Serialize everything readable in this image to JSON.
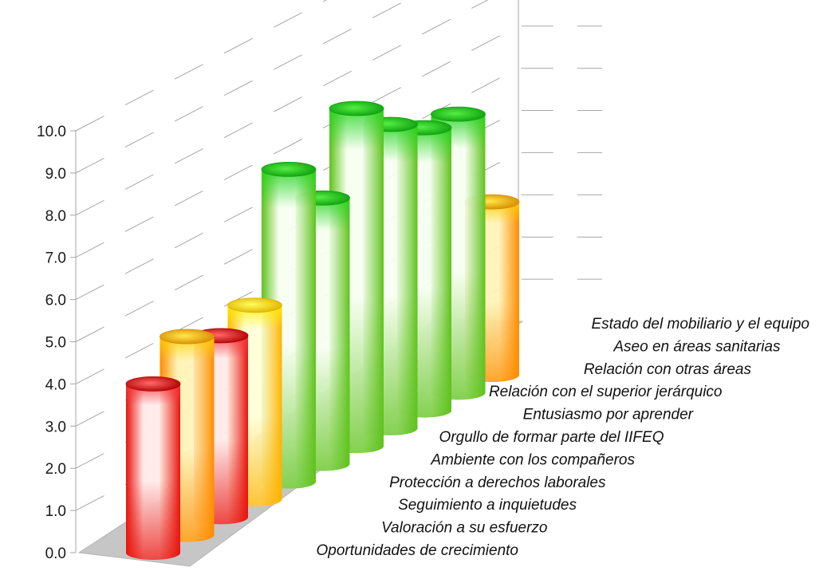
{
  "chart_data": {
    "type": "bar",
    "style": "3d-cylinder",
    "categories": [
      "Oportunidades de crecimiento",
      "Valoración a su esfuerzo",
      "Seguimiento a inquietudes",
      "Protección a derechos laborales",
      "Ambiente con los compañeros",
      "Orgullo de formar parte del IIFEQ",
      "Entusiasmo por aprender",
      "Relación con el superior jerárquico",
      "Relación con otras áreas",
      "Aseo en áreas sanitarias",
      "Estado del mobiliario y el equipo"
    ],
    "values": [
      4.0,
      4.7,
      4.3,
      4.6,
      7.4,
      6.3,
      8.0,
      7.2,
      6.7,
      6.6,
      4.1
    ],
    "colors": [
      "red",
      "orange",
      "red",
      "yellow",
      "green",
      "green",
      "green",
      "green",
      "green",
      "green",
      "orange"
    ],
    "yticks": [
      "0.0",
      "1.0",
      "2.0",
      "3.0",
      "4.0",
      "5.0",
      "6.0",
      "7.0",
      "8.0",
      "9.0",
      "10.0"
    ],
    "ylim": [
      0,
      10
    ],
    "title": "",
    "xlabel": "",
    "ylabel": "",
    "grid": true,
    "legend": "none"
  }
}
